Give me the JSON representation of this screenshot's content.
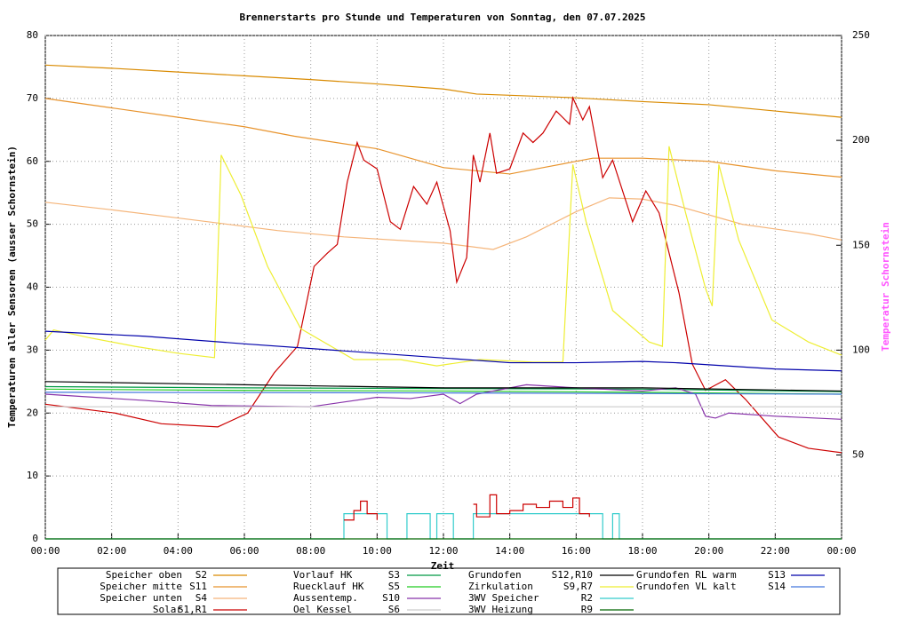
{
  "chart_data": {
    "type": "line",
    "title": "Brennerstarts pro Stunde und Temperaturen von Sonntag, den 07.07.2025",
    "x_label": "Zeit",
    "y_label": "Temperaturen aller Sensoren (ausser Schornstein)",
    "y2_label": "Temperatur Schornstein",
    "y2_color": "#ff55ff",
    "xlim": [
      0,
      24
    ],
    "xticks": [
      {
        "value": 0,
        "label": "00:00"
      },
      {
        "value": 2,
        "label": "02:00"
      },
      {
        "value": 4,
        "label": "04:00"
      },
      {
        "value": 6,
        "label": "06:00"
      },
      {
        "value": 8,
        "label": "08:00"
      },
      {
        "value": 10,
        "label": "10:00"
      },
      {
        "value": 12,
        "label": "12:00"
      },
      {
        "value": 14,
        "label": "14:00"
      },
      {
        "value": 16,
        "label": "16:00"
      },
      {
        "value": 18,
        "label": "18:00"
      },
      {
        "value": 20,
        "label": "20:00"
      },
      {
        "value": 22,
        "label": "22:00"
      },
      {
        "value": 24,
        "label": "00:00"
      }
    ],
    "ylim": [
      0,
      80
    ],
    "yticks": [
      0,
      10,
      20,
      30,
      40,
      50,
      60,
      70,
      80
    ],
    "y2lim": [
      10,
      250
    ],
    "y2ticks": [
      50,
      100,
      150,
      200,
      250
    ],
    "grid": true,
    "series": [
      {
        "name": "Speicher oben",
        "sensor": "S2",
        "color": "#d98a00",
        "x": [
          0,
          2,
          4,
          6,
          8,
          10,
          12,
          13,
          14,
          16,
          18,
          20,
          22,
          24
        ],
        "values": [
          75.3,
          74.8,
          74.2,
          73.6,
          73,
          72.3,
          71.5,
          70.7,
          70.5,
          70.1,
          69.5,
          69,
          68,
          67
        ]
      },
      {
        "name": "Speicher mitte",
        "sensor": "S11",
        "color": "#e8942e",
        "x": [
          0,
          2,
          4,
          6,
          7.5,
          10,
          12,
          14,
          15,
          16.5,
          18,
          20,
          22,
          24
        ],
        "values": [
          70,
          68.5,
          67,
          65.5,
          64,
          62,
          59,
          58,
          59,
          60.5,
          60.5,
          60,
          58.5,
          57.5
        ]
      },
      {
        "name": "Speicher unten",
        "sensor": "S4",
        "color": "#f5b57a",
        "x": [
          0,
          2,
          4,
          7,
          9,
          12,
          13.5,
          14.5,
          16,
          17,
          18,
          19,
          21,
          23,
          24
        ],
        "values": [
          53.5,
          52.3,
          51,
          49,
          48,
          47,
          46,
          48,
          52,
          54.2,
          54,
          53,
          50,
          48.5,
          47.5
        ]
      },
      {
        "name": "Solar",
        "sensor": "S1,R1",
        "color": "#cc0000",
        "x": [
          0,
          2.1,
          3.5,
          5.2,
          6.1,
          6.9,
          7.6,
          8.1,
          8.5,
          8.8,
          9.1,
          9.4,
          9.6,
          10,
          10.4,
          10.7,
          11.1,
          11.5,
          11.8,
          12.2,
          12.4,
          12.7,
          12.9,
          13.1,
          13.4,
          13.6,
          14,
          14.4,
          14.7,
          15,
          15.4,
          15.8,
          15.9,
          16.2,
          16.4,
          16.8,
          17.1,
          17.7,
          18.1,
          18.5,
          19.1,
          19.5,
          19.9,
          20.5,
          21.1,
          22.1,
          23,
          24
        ],
        "values": [
          21.4,
          20,
          18.3,
          17.8,
          20,
          26.4,
          30.6,
          43.3,
          45.4,
          46.8,
          56.7,
          63,
          60.2,
          58.8,
          50.4,
          49.2,
          56,
          53.2,
          56.7,
          49,
          40.8,
          44.7,
          61,
          56.7,
          64.5,
          58.1,
          58.8,
          64.5,
          63,
          64.5,
          68,
          65.9,
          70.1,
          66.6,
          68.7,
          57.4,
          60.2,
          50.4,
          55.3,
          51.8,
          39.1,
          27.8,
          23.6,
          25.3,
          22.2,
          16.2,
          14.4,
          13.7
        ]
      },
      {
        "name": "Vorlauf HK",
        "sensor": "S3",
        "color": "#009944",
        "x": [
          0,
          6,
          12,
          18,
          24
        ],
        "values": [
          24.2,
          24,
          23.9,
          23.8,
          23.4
        ]
      },
      {
        "name": "Ruecklauf HK",
        "sensor": "S5",
        "color": "#22cc22",
        "x": [
          0,
          6,
          12,
          18,
          24
        ],
        "values": [
          23.8,
          23.6,
          23.5,
          23.3,
          23
        ]
      },
      {
        "name": "Aussentemp.",
        "sensor": "S10",
        "color": "#8833aa",
        "x": [
          0,
          3,
          5,
          8,
          10,
          11,
          12,
          12.5,
          13,
          14.5,
          16,
          18,
          19,
          19.6,
          19.9,
          20.2,
          20.6,
          22,
          24
        ],
        "values": [
          23,
          22,
          21.2,
          21,
          22.5,
          22.3,
          23,
          21.5,
          23,
          24.5,
          24,
          23.5,
          24,
          23,
          19.5,
          19.2,
          20,
          19.5,
          19
        ]
      },
      {
        "name": "Oel Kessel",
        "sensor": "S6",
        "color": "#cccccc",
        "x": [
          0,
          12,
          24
        ],
        "values": [
          21,
          21,
          21
        ]
      },
      {
        "name": "Grundofen",
        "sensor": "S12,R10",
        "color": "#000000",
        "x": [
          0,
          6,
          12,
          18,
          24
        ],
        "values": [
          25,
          24.5,
          24,
          24,
          23.5
        ]
      },
      {
        "name": "Zirkulation",
        "sensor": "S9,R7",
        "color": "#eeee33",
        "x": [
          0,
          0.25,
          1.3,
          2.7,
          4,
          5.1,
          5.3,
          5.9,
          6.7,
          7.7,
          9.3,
          10.7,
          11.8,
          13.1,
          14.7,
          15.6,
          15.9,
          16.3,
          17.1,
          18.2,
          18.6,
          18.8,
          19.3,
          19.9,
          20.1,
          20.3,
          20.9,
          21.9,
          23,
          24
        ],
        "values": [
          31.6,
          33.2,
          32,
          30.6,
          29.5,
          28.8,
          61,
          54.6,
          43.3,
          33.4,
          28.5,
          28.5,
          27.5,
          28.5,
          28.1,
          28.1,
          59.5,
          50.4,
          36.3,
          31.3,
          30.6,
          62.4,
          51.8,
          39.8,
          37,
          59.5,
          47.5,
          34.8,
          31.3,
          29.2
        ]
      },
      {
        "name": "3WV Speicher",
        "sensor": "R2",
        "color": "#33cccc",
        "step": true,
        "x": [
          0,
          9,
          10.3,
          10.9,
          11.6,
          11.8,
          12.3,
          12.9,
          16.8,
          17.1,
          17.3,
          24
        ],
        "values": [
          0,
          4,
          0,
          4,
          0,
          4,
          0,
          4,
          0,
          4,
          0,
          0
        ]
      },
      {
        "name": "3WV Heizung",
        "sensor": "R9",
        "color": "#006600",
        "step": true,
        "x": [
          0,
          24
        ],
        "values": [
          0,
          0
        ]
      },
      {
        "name": "Grundofen RL warm",
        "sensor": "S13",
        "color": "#0000aa",
        "x": [
          0,
          3,
          6,
          10,
          14,
          16,
          18,
          19,
          22,
          24
        ],
        "values": [
          33,
          32.2,
          31,
          29.5,
          28,
          28,
          28.2,
          28,
          27,
          26.7
        ]
      },
      {
        "name": "Grundofen VL kalt",
        "sensor": "S14",
        "color": "#4477dd",
        "x": [
          0,
          12,
          24
        ],
        "values": [
          23.3,
          23.2,
          23
        ]
      },
      {
        "color": "#cc0000",
        "step": true,
        "x": [
          9,
          9.3,
          9.5,
          9.7,
          10,
          10.3,
          10.9,
          11.5,
          11.8,
          12.2,
          12.9,
          13,
          13.4,
          13.6,
          14,
          14.4,
          14.8,
          15.2,
          15.6,
          15.9,
          16.1,
          16.4,
          16.9
        ],
        "values": [
          3,
          4.5,
          6,
          4,
          3,
          null,
          3,
          null,
          3,
          null,
          5.5,
          3.5,
          7,
          4,
          4.5,
          5.5,
          5,
          6,
          5,
          6.5,
          4,
          3.5,
          null
        ]
      }
    ]
  }
}
